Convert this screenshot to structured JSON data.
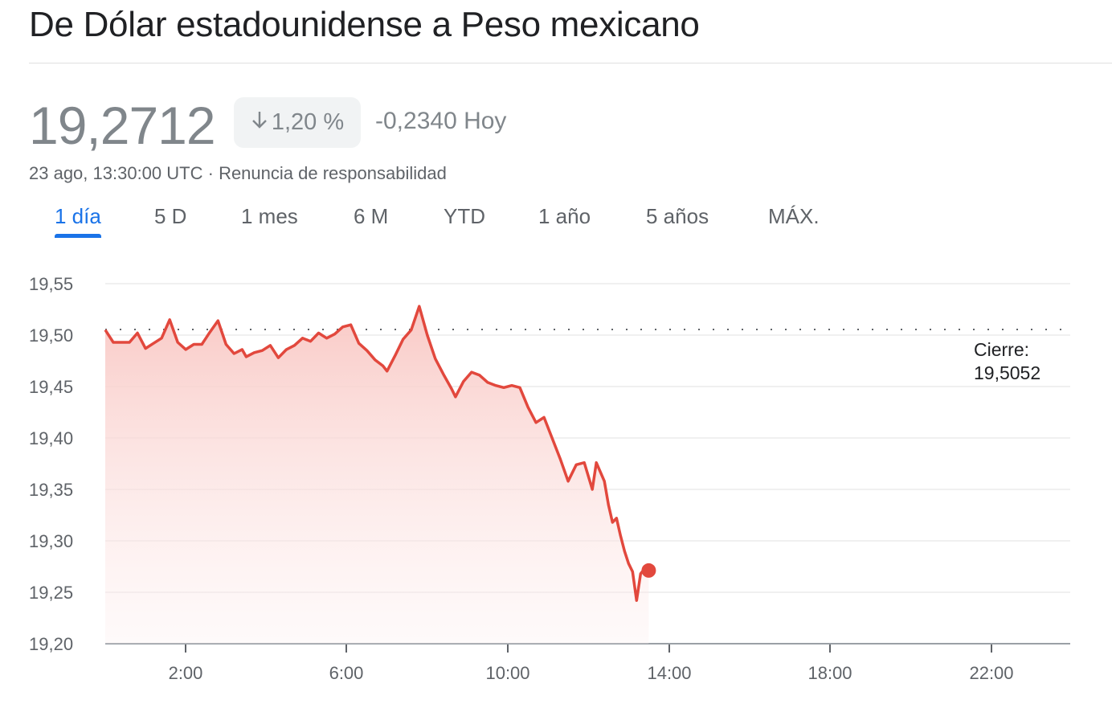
{
  "header": {
    "title": "De Dólar estadounidense a Peso mexicano"
  },
  "quote": {
    "price": "19,2712",
    "change_percent": "1,20 %",
    "direction_icon": "arrow-down-icon",
    "change_abs": "-0,2340 Hoy",
    "timestamp": "23 ago, 13:30:00 UTC",
    "separator": "·",
    "disclaimer_link": "Renuncia de responsabilidad"
  },
  "tabs": [
    {
      "label": "1 día",
      "active": true
    },
    {
      "label": "5 D",
      "active": false
    },
    {
      "label": "1 mes",
      "active": false
    },
    {
      "label": "6 M",
      "active": false
    },
    {
      "label": "YTD",
      "active": false
    },
    {
      "label": "1 año",
      "active": false
    },
    {
      "label": "5 años",
      "active": false
    },
    {
      "label": "MÁX.",
      "active": false
    }
  ],
  "close_annotation": {
    "label": "Cierre:",
    "value": "19,5052"
  },
  "colors": {
    "line": "#e2483d",
    "fill_top": "#f9c9c5",
    "active_tab": "#1a73e8",
    "muted_text": "#80868b",
    "grid": "#ececec"
  },
  "chart_data": {
    "type": "area",
    "title": "De Dólar estadounidense a Peso mexicano",
    "xlabel": "",
    "ylabel": "",
    "y_tick_labels": [
      "19,20",
      "19,25",
      "19,30",
      "19,35",
      "19,40",
      "19,45",
      "19,50",
      "19,55"
    ],
    "x_tick_labels": [
      "2:00",
      "6:00",
      "10:00",
      "14:00",
      "18:00",
      "22:00"
    ],
    "ylim": [
      19.2,
      19.55
    ],
    "xlim_hours": [
      0,
      24
    ],
    "grid": true,
    "reference_line": {
      "label": "Cierre: 19,5052",
      "value": 19.5052,
      "style": "dotted"
    },
    "current_point": {
      "time": "13:30",
      "value": 19.2712
    },
    "x_hours": [
      0.0,
      0.2,
      0.4,
      0.6,
      0.8,
      1.0,
      1.2,
      1.4,
      1.6,
      1.8,
      2.0,
      2.2,
      2.4,
      2.6,
      2.8,
      3.0,
      3.2,
      3.4,
      3.5,
      3.7,
      3.9,
      4.1,
      4.3,
      4.5,
      4.7,
      4.9,
      5.1,
      5.3,
      5.5,
      5.7,
      5.9,
      6.1,
      6.3,
      6.5,
      6.7,
      6.9,
      7.0,
      7.2,
      7.4,
      7.6,
      7.8,
      8.0,
      8.2,
      8.4,
      8.6,
      8.7,
      8.9,
      9.1,
      9.3,
      9.5,
      9.7,
      9.9,
      10.1,
      10.3,
      10.5,
      10.7,
      10.9,
      11.1,
      11.3,
      11.5,
      11.7,
      11.9,
      12.1,
      12.2,
      12.4,
      12.5,
      12.6,
      12.7,
      12.8,
      12.9,
      13.0,
      13.1,
      13.2,
      13.3,
      13.4,
      13.5
    ],
    "values": [
      19.505,
      19.493,
      19.493,
      19.493,
      19.502,
      19.487,
      19.492,
      19.497,
      19.515,
      19.493,
      19.486,
      19.491,
      19.491,
      19.503,
      19.514,
      19.491,
      19.482,
      19.486,
      19.479,
      19.483,
      19.485,
      19.49,
      19.478,
      19.486,
      19.49,
      19.497,
      19.494,
      19.502,
      19.497,
      19.501,
      19.508,
      19.51,
      19.492,
      19.485,
      19.476,
      19.47,
      19.465,
      19.48,
      19.496,
      19.505,
      19.528,
      19.5,
      19.477,
      19.462,
      19.448,
      19.44,
      19.455,
      19.464,
      19.461,
      19.454,
      19.451,
      19.449,
      19.451,
      19.449,
      19.43,
      19.415,
      19.42,
      19.4,
      19.38,
      19.358,
      19.374,
      19.376,
      19.35,
      19.376,
      19.358,
      19.335,
      19.318,
      19.322,
      19.305,
      19.29,
      19.278,
      19.27,
      19.242,
      19.268,
      19.273,
      19.271
    ]
  }
}
